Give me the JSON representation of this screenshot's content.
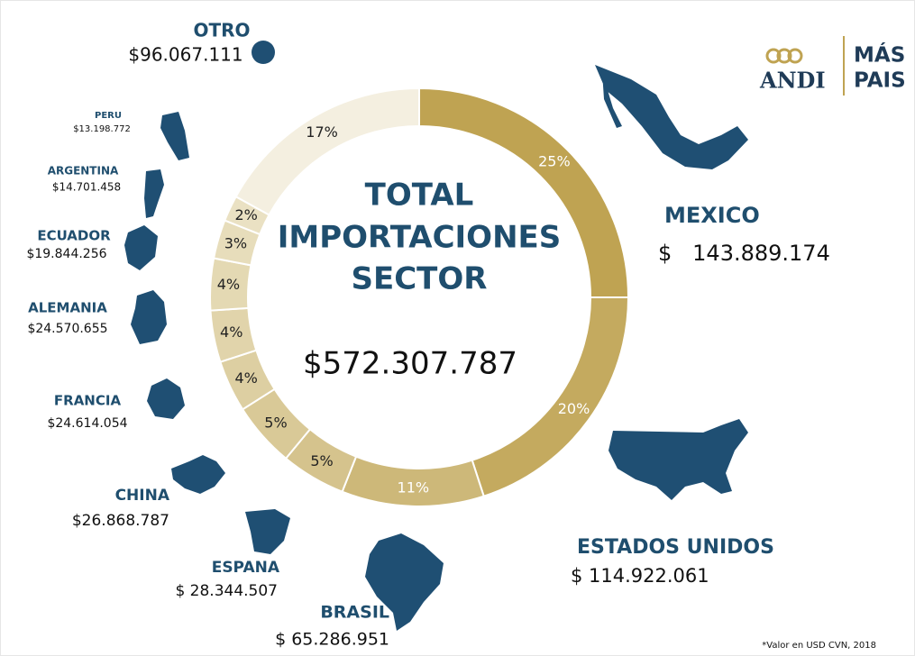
{
  "chart_data": {
    "type": "pie",
    "donut": true,
    "title_lines": [
      "TOTAL",
      "IMPORTACIONES",
      "SECTOR"
    ],
    "total": "$572.307.787",
    "categories": [
      "MEXICO",
      "ESTADOS UNIDOS",
      "BRASIL",
      "ESPANA",
      "CHINA",
      "FRANCIA",
      "ALEMANIA",
      "ECUADOR",
      "ARGENTINA",
      "PERU",
      "OTRO"
    ],
    "amounts": [
      "$   143.889.174",
      "$ 114.922.061",
      "$ 65.286.951",
      "$ 28.344.507",
      "$26.868.787",
      "$24.614.054",
      "$24.570.655",
      "$19.844.256",
      "$14.701.458",
      "$13.198.772",
      "$96.067.111"
    ],
    "values": [
      25,
      20,
      11,
      5,
      5,
      4,
      4,
      4,
      3,
      2,
      17
    ],
    "value_labels": [
      "25%",
      "20%",
      "11%",
      "5%",
      "5%",
      "4%",
      "4%",
      "4%",
      "3%",
      "2%",
      "17%"
    ],
    "colors": [
      "#bfa352",
      "#c4aa5f",
      "#cdb879",
      "#d5c38d",
      "#d9c997",
      "#ddcfa2",
      "#e1d4ab",
      "#e4d9b3",
      "#e7ddbb",
      "#eae1c3",
      "#f4efe0"
    ],
    "footnote": "*Valor  en USD    CVN, 2018",
    "logo": {
      "left": "ANDI",
      "right_top": "MÁS",
      "right_bottom": "PAIS"
    }
  }
}
